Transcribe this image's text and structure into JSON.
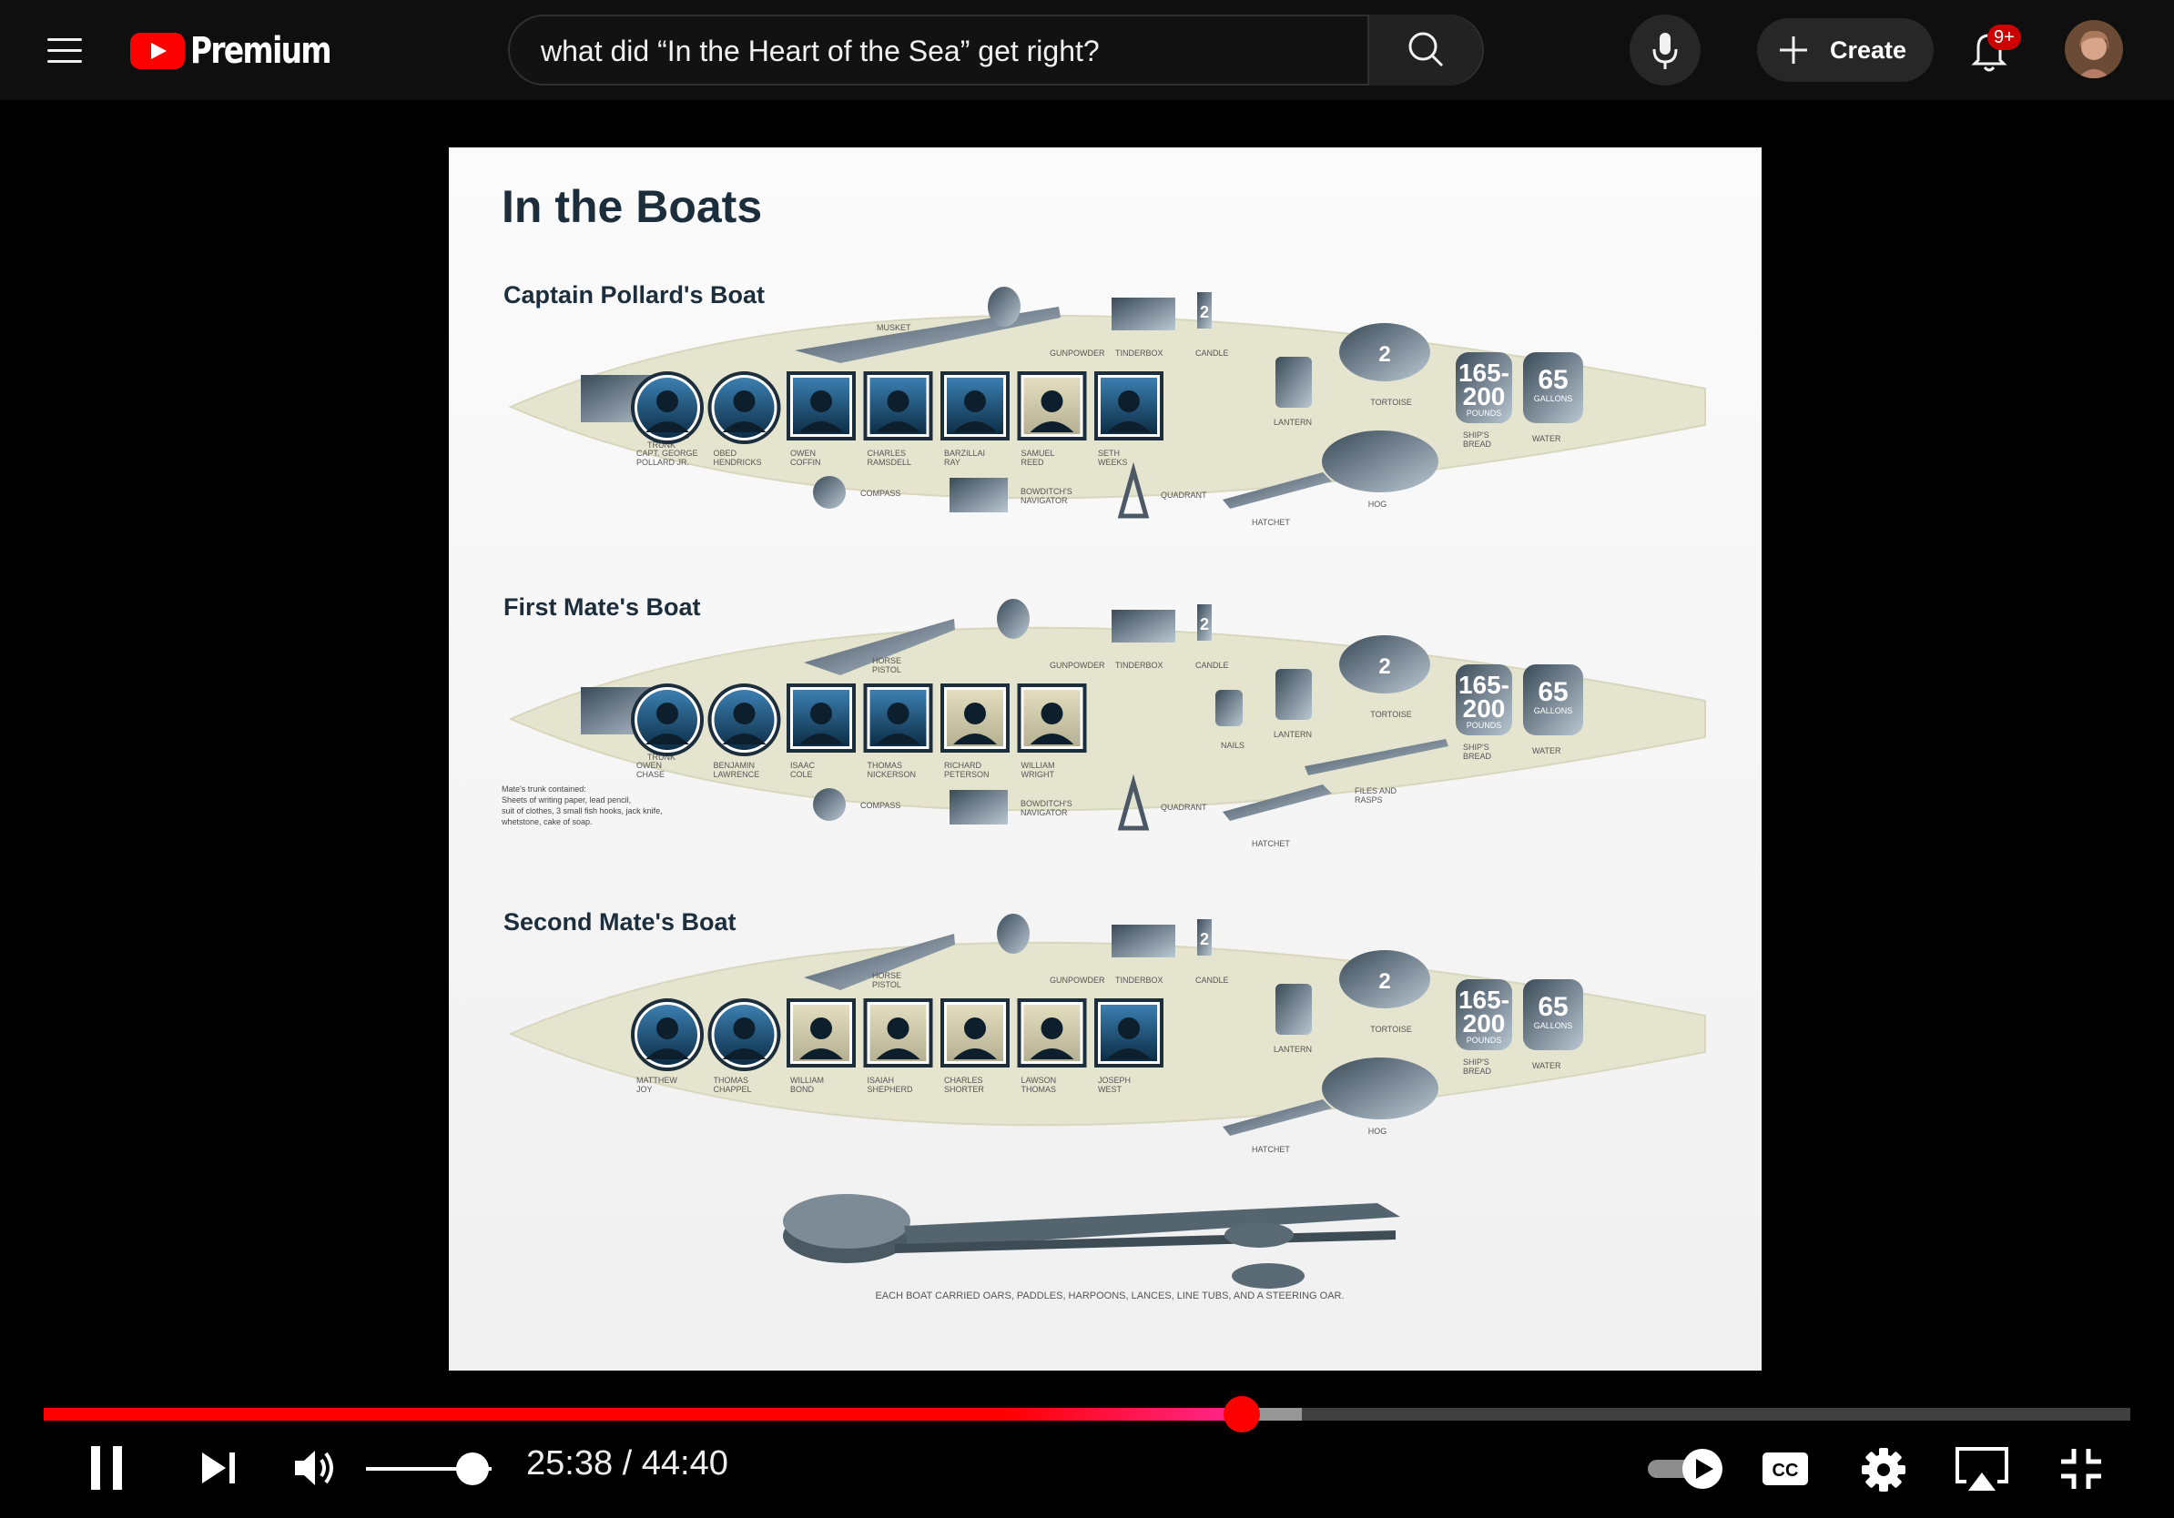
{
  "header": {
    "brand": "Premium",
    "search_query": "what did “In the Heart of the Sea” get right?",
    "create_label": "Create",
    "notification_badge": "9+"
  },
  "slide": {
    "title": "In the Boats",
    "boats": [
      {
        "name": "Captain Pollard's Boat",
        "trunk_label": "CAPTAIN'S TRUNK",
        "weapon": "MUSKET",
        "crew": [
          "CAPT. GEORGE POLLARD JR.",
          "OBED HENDRICKS",
          "OWEN COFFIN",
          "CHARLES RAMSDELL",
          "BARZILLAI RAY",
          "SAMUEL REED",
          "SETH WEEKS"
        ],
        "tools": [
          "COMPASS",
          "BOWDITCH'S NAVIGATOR",
          "QUADRANT"
        ],
        "supplies": [
          "GUNPOWDER",
          "TINDERBOX",
          "CANDLE",
          "LANTERN",
          "TORTOISE",
          "HOG",
          "HATCHET"
        ],
        "candle_count": "2",
        "tortoise_count": "2",
        "bread_amount": "165-200",
        "bread_unit": "POUNDS",
        "bread_label": "SHIP'S BREAD",
        "water_amount": "65",
        "water_unit": "GALLONS",
        "water_label": "WATER"
      },
      {
        "name": "First Mate's Boat",
        "trunk_label": "MATE'S TRUNK",
        "weapon": "HORSE PISTOL",
        "crew": [
          "OWEN CHASE",
          "BENJAMIN LAWRENCE",
          "ISAAC COLE",
          "THOMAS NICKERSON",
          "RICHARD PETERSON",
          "WILLIAM WRIGHT"
        ],
        "tools": [
          "COMPASS",
          "BOWDITCH'S NAVIGATOR",
          "QUADRANT"
        ],
        "supplies": [
          "GUNPOWDER",
          "TINDERBOX",
          "CANDLE",
          "LANTERN",
          "TORTOISE",
          "NAILS",
          "FILES AND RASPS",
          "HATCHET"
        ],
        "note": "Mate's trunk contained: Sheets of writing paper, lead pencil, suit of clothes, 3 small fish hooks, jack knife, whetstone, cake of soap.",
        "candle_count": "2",
        "tortoise_count": "2",
        "bread_amount": "165-200",
        "bread_unit": "POUNDS",
        "bread_label": "SHIP'S BREAD",
        "water_amount": "65",
        "water_unit": "GALLONS",
        "water_label": "WATER"
      },
      {
        "name": "Second Mate's Boat",
        "weapon": "HORSE PISTOL",
        "crew": [
          "MATTHEW JOY",
          "THOMAS CHAPPEL",
          "WILLIAM BOND",
          "ISAIAH SHEPHERD",
          "CHARLES SHORTER",
          "LAWSON THOMAS",
          "JOSEPH WEST"
        ],
        "supplies": [
          "GUNPOWDER",
          "TINDERBOX",
          "CANDLE",
          "LANTERN",
          "TORTOISE",
          "HOG",
          "HATCHET"
        ],
        "candle_count": "2",
        "tortoise_count": "2",
        "bread_amount": "165-200",
        "bread_unit": "POUNDS",
        "bread_label": "SHIP'S BREAD",
        "water_amount": "65",
        "water_unit": "GALLONS",
        "water_label": "WATER"
      }
    ],
    "footer_caption": "EACH BOAT CARRIED OARS, PADDLES, HARPOONS, LANCES, LINE TUBS, AND A STEERING OAR."
  },
  "player": {
    "current_time": "25:38",
    "separator": "/",
    "duration": "44:40",
    "progress_fraction": 0.574,
    "buffered_fraction": 0.603,
    "volume_fraction": 0.85
  },
  "icons": [
    "menu-icon",
    "youtube-logo-icon",
    "clear-icon",
    "search-icon",
    "mic-icon",
    "plus-icon",
    "bell-icon",
    "pause-icon",
    "next-icon",
    "volume-icon",
    "autoplay-toggle-icon",
    "captions-icon",
    "gear-icon",
    "airplay-icon",
    "exit-fullscreen-icon"
  ]
}
